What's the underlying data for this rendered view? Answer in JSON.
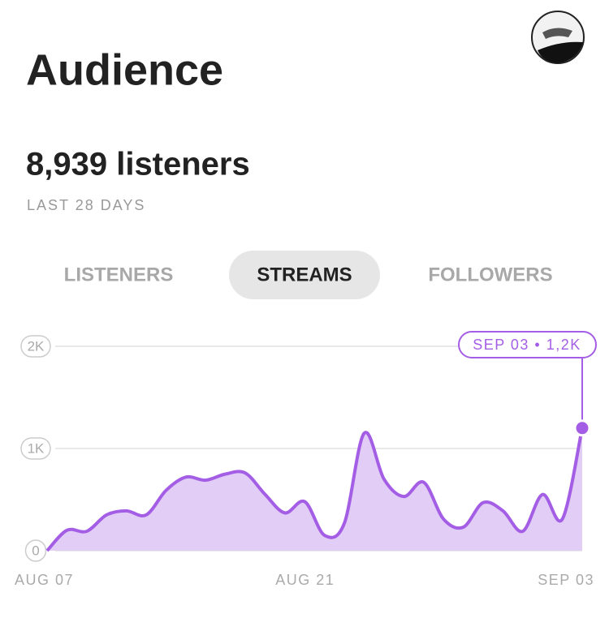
{
  "header": {
    "title": "Audience"
  },
  "summary": {
    "value": "8,939 listeners",
    "period": "LAST 28 DAYS"
  },
  "tabs": [
    "LISTENERS",
    "STREAMS",
    "FOLLOWERS"
  ],
  "selected_tab": 1,
  "chart_data": {
    "type": "line",
    "categories": [
      "AUG 07",
      null,
      null,
      null,
      null,
      null,
      null,
      null,
      null,
      null,
      null,
      null,
      null,
      null,
      "AUG 21",
      null,
      null,
      null,
      null,
      null,
      null,
      null,
      null,
      null,
      null,
      null,
      null,
      "SEP 03"
    ],
    "series": [
      {
        "name": "STREAMS",
        "color": "#a45ee5",
        "values": [
          0,
          200,
          190,
          350,
          390,
          350,
          590,
          720,
          690,
          750,
          760,
          550,
          370,
          480,
          150,
          270,
          1150,
          700,
          530,
          670,
          310,
          230,
          470,
          390,
          190,
          550,
          310,
          1200
        ]
      }
    ],
    "fill_color": "#e2cdf6",
    "ylim": [
      0,
      2000
    ],
    "yticks": [
      {
        "value": 0,
        "label": "0"
      },
      {
        "value": 1000,
        "label": "1K"
      },
      {
        "value": 2000,
        "label": "2K"
      }
    ],
    "grid": true,
    "tooltip": "SEP 03 • 1,2K"
  }
}
